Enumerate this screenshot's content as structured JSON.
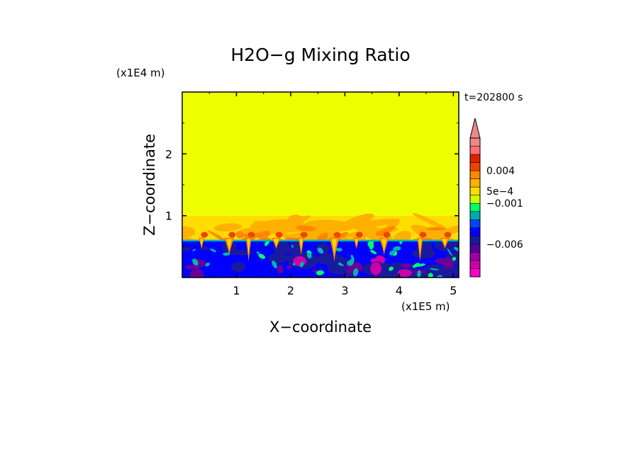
{
  "chart_data": {
    "type": "heatmap",
    "title": "H2O−g Mixing Ratio",
    "xlabel": "X−coordinate",
    "ylabel": "Z−coordinate",
    "x_scale_label": "(x1E5 m)",
    "y_scale_label": "(x1E4 m)",
    "time_label": "t=202800 s",
    "xlim": [
      0,
      5.1
    ],
    "ylim": [
      0,
      3.0
    ],
    "x_ticks": [
      1,
      2,
      3,
      4,
      5
    ],
    "x_tick_labels": [
      "1",
      "2",
      "3",
      "4",
      "5"
    ],
    "y_ticks": [
      1,
      2
    ],
    "y_tick_labels": [
      "1",
      "2"
    ],
    "layers": {
      "upper_z": [
        1.0,
        3.0
      ],
      "mixed_z": [
        0.6,
        1.0
      ],
      "lower_z": [
        0.0,
        0.6
      ]
    },
    "colorbar": {
      "levels": [
        "#ff00cc",
        "#cc00aa",
        "#9900aa",
        "#5500a0",
        "#1a1aa0",
        "#0000ff",
        "#0044ff",
        "#00aaaa",
        "#00ff66",
        "#ccff00",
        "#ffdd00",
        "#ffb000",
        "#ff8800",
        "#ee4400",
        "#dd2200",
        "#ff7070",
        "#ee8888"
      ],
      "labels": [
        {
          "text": "0.004",
          "level": 13
        },
        {
          "text": "5e−4",
          "level": 10.5
        },
        {
          "text": "−0.001",
          "level": 9
        },
        {
          "text": "−0.006",
          "level": 4
        }
      ]
    },
    "colors": {
      "upper": "#eeff00",
      "mixed_base": "#ffdd00",
      "mixed_orange": "#ffb000",
      "mixed_dark": "#ff8800",
      "plume_red": "#ee4400",
      "lower_base": "#0000ff",
      "lower_navy": "#1a1aa0",
      "lower_purple": "#6a0096",
      "lower_magenta": "#cc00aa",
      "lower_cyan": "#00b4b4",
      "lower_green": "#00ff66"
    }
  }
}
